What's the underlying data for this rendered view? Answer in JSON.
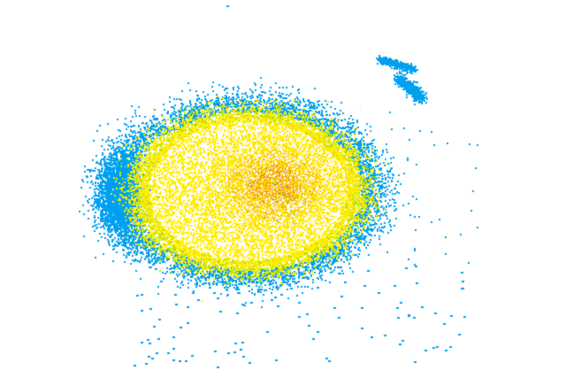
{
  "plot": {
    "kind": "point-density-scatter",
    "background": "#ffffff",
    "colors": {
      "dense": "#f5a000",
      "mid": "#ffee00",
      "edge_green": "#b8e000",
      "sparse": "#00a0f0"
    }
  }
}
